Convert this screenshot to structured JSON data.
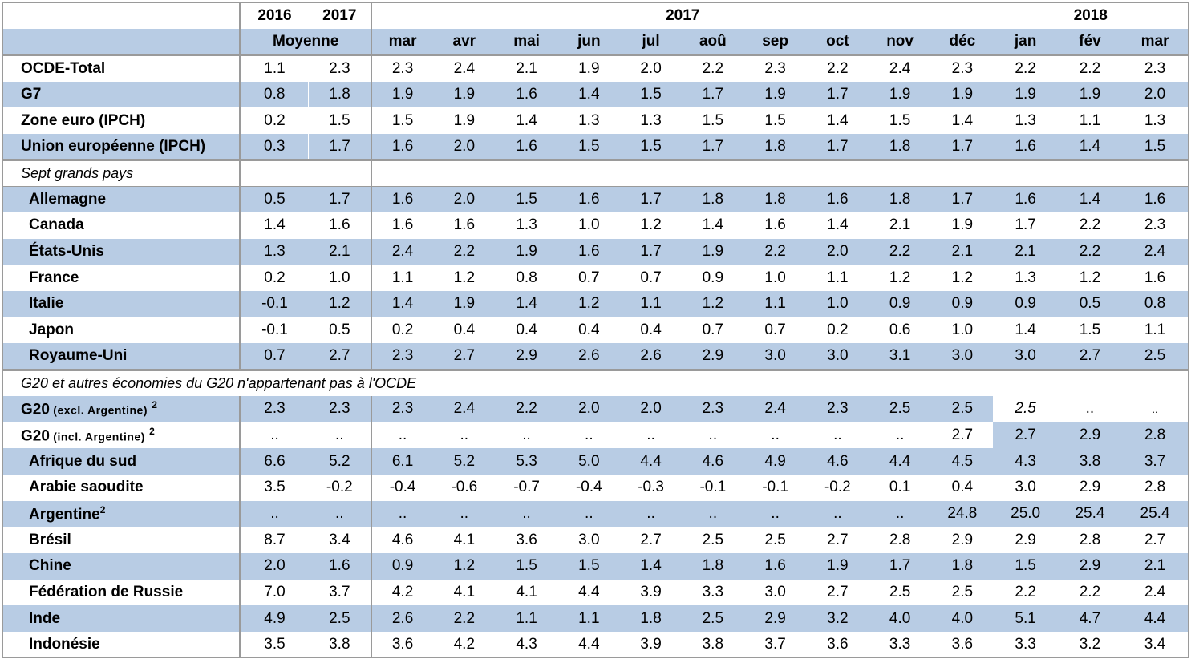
{
  "header": {
    "years": [
      "2016",
      "2017"
    ],
    "avg_label": "Moyenne",
    "group_2017": "2017",
    "group_2018": "2018",
    "months": [
      "mar",
      "avr",
      "mai",
      "jun",
      "jul",
      "aoû",
      "sep",
      "oct",
      "nov",
      "déc",
      "jan",
      "fév",
      "mar"
    ]
  },
  "group1": [
    {
      "label": "OCDE-Total",
      "values": [
        "1.1",
        "2.3",
        "2.3",
        "2.4",
        "2.1",
        "1.9",
        "2.0",
        "2.2",
        "2.3",
        "2.2",
        "2.4",
        "2.3",
        "2.2",
        "2.2",
        "2.3"
      ]
    },
    {
      "label": "G7",
      "values": [
        "0.8",
        "1.8",
        "1.9",
        "1.9",
        "1.6",
        "1.4",
        "1.5",
        "1.7",
        "1.9",
        "1.7",
        "1.9",
        "1.9",
        "1.9",
        "1.9",
        "2.0"
      ]
    },
    {
      "label": "Zone euro (IPCH)",
      "values": [
        "0.2",
        "1.5",
        "1.5",
        "1.9",
        "1.4",
        "1.3",
        "1.3",
        "1.5",
        "1.5",
        "1.4",
        "1.5",
        "1.4",
        "1.3",
        "1.1",
        "1.3"
      ]
    },
    {
      "label": "Union européenne (IPCH)",
      "values": [
        "0.3",
        "1.7",
        "1.6",
        "2.0",
        "1.6",
        "1.5",
        "1.5",
        "1.7",
        "1.8",
        "1.7",
        "1.8",
        "1.7",
        "1.6",
        "1.4",
        "1.5"
      ]
    }
  ],
  "section_g7": "Sept grands pays",
  "group2": [
    {
      "label": "Allemagne",
      "values": [
        "0.5",
        "1.7",
        "1.6",
        "2.0",
        "1.5",
        "1.6",
        "1.7",
        "1.8",
        "1.8",
        "1.6",
        "1.8",
        "1.7",
        "1.6",
        "1.4",
        "1.6"
      ]
    },
    {
      "label": "Canada",
      "values": [
        "1.4",
        "1.6",
        "1.6",
        "1.6",
        "1.3",
        "1.0",
        "1.2",
        "1.4",
        "1.6",
        "1.4",
        "2.1",
        "1.9",
        "1.7",
        "2.2",
        "2.3"
      ]
    },
    {
      "label": "États-Unis",
      "values": [
        "1.3",
        "2.1",
        "2.4",
        "2.2",
        "1.9",
        "1.6",
        "1.7",
        "1.9",
        "2.2",
        "2.0",
        "2.2",
        "2.1",
        "2.1",
        "2.2",
        "2.4"
      ]
    },
    {
      "label": "France",
      "values": [
        "0.2",
        "1.0",
        "1.1",
        "1.2",
        "0.8",
        "0.7",
        "0.7",
        "0.9",
        "1.0",
        "1.1",
        "1.2",
        "1.2",
        "1.3",
        "1.2",
        "1.6"
      ]
    },
    {
      "label": "Italie",
      "values": [
        "-0.1",
        "1.2",
        "1.4",
        "1.9",
        "1.4",
        "1.2",
        "1.1",
        "1.2",
        "1.1",
        "1.0",
        "0.9",
        "0.9",
        "0.9",
        "0.5",
        "0.8"
      ]
    },
    {
      "label": "Japon",
      "values": [
        "-0.1",
        "0.5",
        "0.2",
        "0.4",
        "0.4",
        "0.4",
        "0.4",
        "0.7",
        "0.7",
        "0.2",
        "0.6",
        "1.0",
        "1.4",
        "1.5",
        "1.1"
      ]
    },
    {
      "label": "Royaume-Uni",
      "values": [
        "0.7",
        "2.7",
        "2.3",
        "2.7",
        "2.9",
        "2.6",
        "2.6",
        "2.9",
        "3.0",
        "3.0",
        "3.1",
        "3.0",
        "3.0",
        "2.7",
        "2.5"
      ]
    }
  ],
  "section_g20": "G20 et autres économies du G20 n'appartenant pas à l'OCDE",
  "g20_excl": {
    "label_main": "G20",
    "label_small": " (excl. Argentine)",
    "sup": "2",
    "values": [
      "2.3",
      "2.3",
      "2.3",
      "2.4",
      "2.2",
      "2.0",
      "2.0",
      "2.3",
      "2.4",
      "2.3",
      "2.5",
      "2.5",
      "2.5",
      "..",
      ".."
    ]
  },
  "g20_incl": {
    "label_main": "G20",
    "label_small": " (incl. Argentine)",
    "sup": "2",
    "values": [
      "..",
      "..",
      "..",
      "..",
      "..",
      "..",
      "..",
      "..",
      "..",
      "..",
      "..",
      "2.7",
      "2.7",
      "2.9",
      "2.8"
    ]
  },
  "group3": [
    {
      "label": "Afrique du sud",
      "values": [
        "6.6",
        "5.2",
        "6.1",
        "5.2",
        "5.3",
        "5.0",
        "4.4",
        "4.6",
        "4.9",
        "4.6",
        "4.4",
        "4.5",
        "4.3",
        "3.8",
        "3.7"
      ]
    },
    {
      "label": "Arabie saoudite",
      "values": [
        "3.5",
        "-0.2",
        "-0.4",
        "-0.6",
        "-0.7",
        "-0.4",
        "-0.3",
        "-0.1",
        "-0.1",
        "-0.2",
        "0.1",
        "0.4",
        "3.0",
        "2.9",
        "2.8"
      ]
    }
  ],
  "argentine": {
    "label": "Argentine",
    "sup": "2",
    "values": [
      "..",
      "..",
      "..",
      "..",
      "..",
      "..",
      "..",
      "..",
      "..",
      "..",
      "..",
      "24.8",
      "25.0",
      "25.4",
      "25.4"
    ]
  },
  "group4": [
    {
      "label": "Brésil",
      "values": [
        "8.7",
        "3.4",
        "4.6",
        "4.1",
        "3.6",
        "3.0",
        "2.7",
        "2.5",
        "2.5",
        "2.7",
        "2.8",
        "2.9",
        "2.9",
        "2.8",
        "2.7"
      ]
    },
    {
      "label": "Chine",
      "values": [
        "2.0",
        "1.6",
        "0.9",
        "1.2",
        "1.5",
        "1.5",
        "1.4",
        "1.8",
        "1.6",
        "1.9",
        "1.7",
        "1.8",
        "1.5",
        "2.9",
        "2.1"
      ]
    },
    {
      "label": "Fédération de Russie",
      "values": [
        "7.0",
        "3.7",
        "4.2",
        "4.1",
        "4.1",
        "4.4",
        "3.9",
        "3.3",
        "3.0",
        "2.7",
        "2.5",
        "2.5",
        "2.2",
        "2.2",
        "2.4"
      ]
    },
    {
      "label": "Inde",
      "values": [
        "4.9",
        "2.5",
        "2.6",
        "2.2",
        "1.1",
        "1.1",
        "1.8",
        "2.5",
        "2.9",
        "3.2",
        "4.0",
        "4.0",
        "5.1",
        "4.7",
        "4.4"
      ]
    },
    {
      "label": "Indonésie",
      "values": [
        "3.5",
        "3.8",
        "3.6",
        "4.2",
        "4.3",
        "4.4",
        "3.9",
        "3.8",
        "3.7",
        "3.6",
        "3.3",
        "3.6",
        "3.3",
        "3.2",
        "3.4"
      ]
    }
  ],
  "colors": {
    "band": "#b8cce4",
    "border": "#9a9a9a"
  }
}
